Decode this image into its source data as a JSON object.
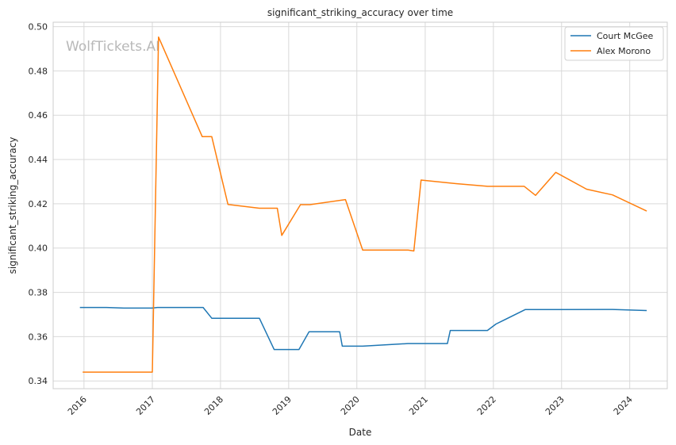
{
  "watermark": "WolfTickets.AI",
  "chart_data": {
    "type": "line",
    "title": "significant_striking_accuracy over time",
    "xlabel": "Date",
    "ylabel": "significant_striking_accuracy",
    "x_axis_type": "date",
    "xlim": [
      "2015-07-20",
      "2024-07-20"
    ],
    "ylim": [
      0.3365,
      0.502
    ],
    "x_ticks": [
      "2016",
      "2017",
      "2018",
      "2019",
      "2020",
      "2021",
      "2022",
      "2023",
      "2024"
    ],
    "y_ticks": [
      "0.34",
      "0.36",
      "0.38",
      "0.40",
      "0.42",
      "0.44",
      "0.46",
      "0.48",
      "0.50"
    ],
    "grid": true,
    "legend_position": "top-right",
    "series": [
      {
        "name": "Court McGee",
        "color": "#1f77b4",
        "points": [
          [
            "2015-12-10",
            0.3732
          ],
          [
            "2016-05-01",
            0.3732
          ],
          [
            "2016-08-01",
            0.3729
          ],
          [
            "2016-12-31",
            0.3729
          ],
          [
            "2017-01-28",
            0.3732
          ],
          [
            "2017-09-30",
            0.3732
          ],
          [
            "2017-11-15",
            0.3683
          ],
          [
            "2018-07-28",
            0.3683
          ],
          [
            "2018-10-15",
            0.3542
          ],
          [
            "2019-02-25",
            0.3542
          ],
          [
            "2019-04-20",
            0.3622
          ],
          [
            "2019-10-01",
            0.3622
          ],
          [
            "2019-10-15",
            0.3557
          ],
          [
            "2020-02-01",
            0.3557
          ],
          [
            "2020-10-01",
            0.3569
          ],
          [
            "2021-04-30",
            0.3569
          ],
          [
            "2021-05-15",
            0.3628
          ],
          [
            "2021-11-30",
            0.3628
          ],
          [
            "2022-01-15",
            0.3657
          ],
          [
            "2022-06-20",
            0.3722
          ],
          [
            "2023-01-01",
            0.3722
          ],
          [
            "2023-10-01",
            0.3723
          ],
          [
            "2024-04-01",
            0.3718
          ]
        ]
      },
      {
        "name": "Alex Morono",
        "color": "#ff7f0e",
        "points": [
          [
            "2015-12-25",
            0.344
          ],
          [
            "2016-06-01",
            0.344
          ],
          [
            "2017-01-01",
            0.344
          ],
          [
            "2017-02-03",
            0.4953
          ],
          [
            "2017-09-25",
            0.4503
          ],
          [
            "2017-11-15",
            0.4503
          ],
          [
            "2018-02-10",
            0.4197
          ],
          [
            "2018-07-28",
            0.418
          ],
          [
            "2018-11-01",
            0.418
          ],
          [
            "2018-11-25",
            0.4057
          ],
          [
            "2019-03-05",
            0.4196
          ],
          [
            "2019-04-25",
            0.4196
          ],
          [
            "2019-11-01",
            0.4219
          ],
          [
            "2020-02-01",
            0.3991
          ],
          [
            "2020-10-01",
            0.3991
          ],
          [
            "2020-11-01",
            0.3987
          ],
          [
            "2020-12-10",
            0.4307
          ],
          [
            "2021-06-15",
            0.4291
          ],
          [
            "2021-12-01",
            0.4279
          ],
          [
            "2022-06-15",
            0.4279
          ],
          [
            "2022-08-15",
            0.4238
          ],
          [
            "2022-12-01",
            0.4342
          ],
          [
            "2023-05-15",
            0.4266
          ],
          [
            "2023-10-01",
            0.424
          ],
          [
            "2024-04-01",
            0.4167
          ]
        ]
      }
    ]
  }
}
